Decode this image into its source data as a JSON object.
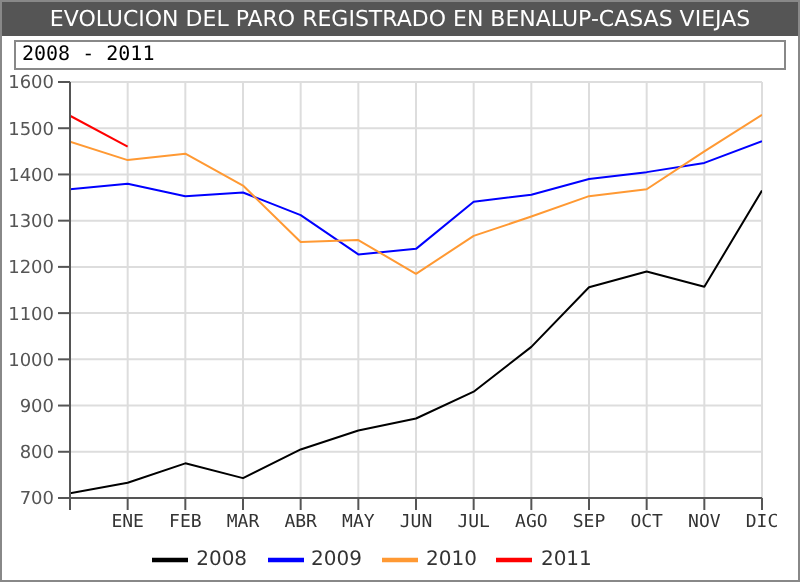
{
  "chart_data": {
    "type": "line",
    "title": "EVOLUCION DEL PARO REGISTRADO EN BENALUP-CASAS VIEJAS",
    "subtitle": "2008 - 2011",
    "categories": [
      null,
      "ENE",
      "FEB",
      "MAR",
      "ABR",
      "MAY",
      "JUN",
      "JUL",
      "AGO",
      "SEP",
      "OCT",
      "NOV",
      "DIC"
    ],
    "series": [
      {
        "name": "2008",
        "color": "#000000",
        "values": [
          710,
          733,
          775,
          743,
          805,
          846,
          872,
          930,
          1027,
          1156,
          1190,
          1157,
          1365
        ]
      },
      {
        "name": "2009",
        "color": "#0000ff",
        "values": [
          1368,
          1380,
          1353,
          1361,
          1312,
          1227,
          1239,
          1341,
          1356,
          1390,
          1405,
          1425,
          1472
        ]
      },
      {
        "name": "2010",
        "color": "#ff9933",
        "values": [
          1471,
          1431,
          1445,
          1376,
          1254,
          1258,
          1185,
          1267,
          1309,
          1353,
          1368,
          1450,
          1529
        ]
      },
      {
        "name": "2011",
        "color": "#ff0000",
        "values": [
          1527,
          1460,
          null,
          null,
          null,
          null,
          null,
          null,
          null,
          null,
          null,
          null,
          null
        ]
      }
    ],
    "ylim": [
      700,
      1600
    ],
    "yticks": [
      700,
      800,
      900,
      1000,
      1100,
      1200,
      1300,
      1400,
      1500,
      1600
    ],
    "grid": true,
    "legend": "bottom",
    "marker": "none",
    "line_style": "solid"
  }
}
